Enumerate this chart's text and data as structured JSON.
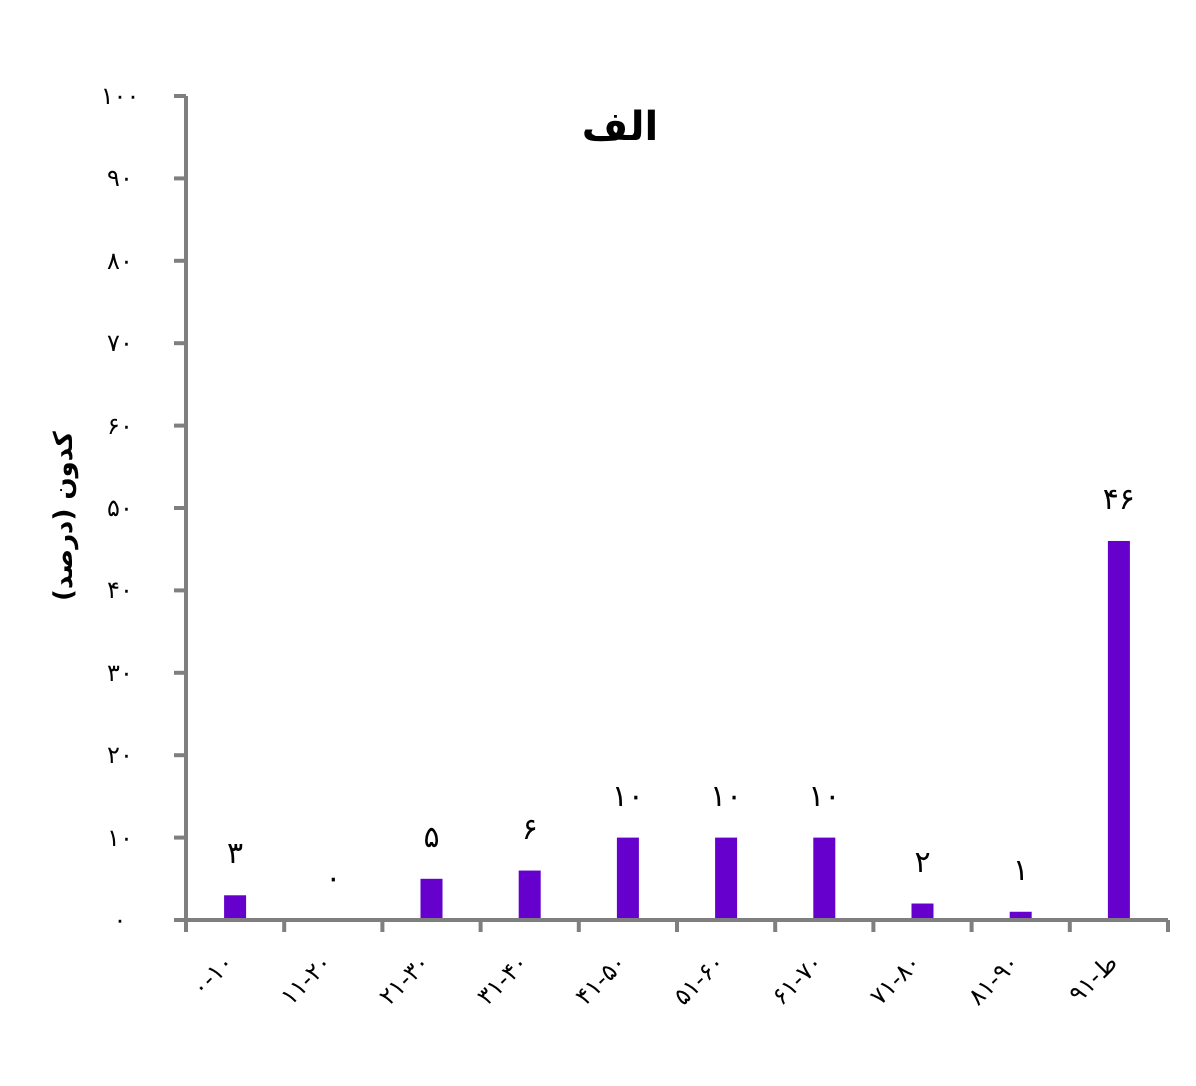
{
  "chart_data": {
    "type": "bar",
    "title": "الف",
    "ylabel": "کدون (درصد)",
    "categories": [
      "۰-۱۰",
      "۱۱-۲۰",
      "۲۱-۳۰",
      "۳۱-۴۰",
      "۴۱-۵۰",
      "۵۱-۶۰",
      "۶۱-۷۰",
      "۷۱-۸۰",
      "۸۱-۹۰",
      "۹۱-ط"
    ],
    "values": [
      3,
      0,
      5,
      6,
      10,
      10,
      10,
      2,
      1,
      46
    ],
    "value_labels": [
      "۳",
      "۰",
      "۵",
      "۶",
      "۱۰",
      "۱۰",
      "۱۰",
      "۲",
      "۱",
      "۴۶"
    ],
    "color": "#6600cc",
    "ylim": [
      0,
      100
    ],
    "yticks": [
      {
        "value": 0,
        "label": "۰"
      },
      {
        "value": 10,
        "label": "۱۰"
      },
      {
        "value": 20,
        "label": "۲۰"
      },
      {
        "value": 30,
        "label": "۳۰"
      },
      {
        "value": 40,
        "label": "۴۰"
      },
      {
        "value": 50,
        "label": "۵۰"
      },
      {
        "value": 60,
        "label": "۶۰"
      },
      {
        "value": 70,
        "label": "۷۰"
      },
      {
        "value": 80,
        "label": "۸۰"
      },
      {
        "value": 90,
        "label": "۹۰"
      },
      {
        "value": 100,
        "label": "۱۰۰"
      }
    ]
  }
}
